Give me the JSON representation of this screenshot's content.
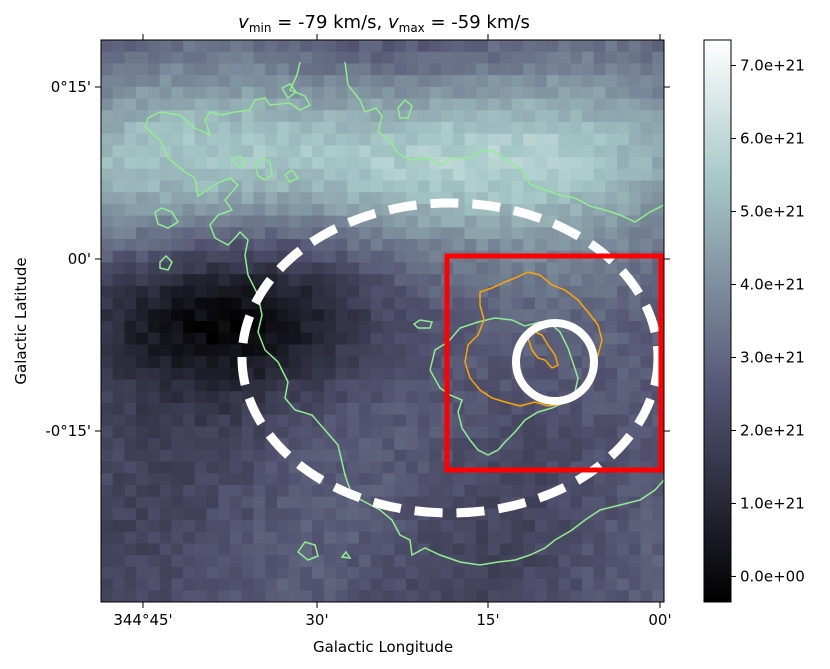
{
  "chart_data": {
    "type": "heatmap",
    "title_parts": {
      "vmin_symbol": "v",
      "vmin_sub": "min",
      "vmin_value": " = -79 km/s, ",
      "vmax_symbol": "v",
      "vmax_sub": "max",
      "vmax_value": " = -59 km/s"
    },
    "xlabel": "Galactic Longitude",
    "ylabel": "Galactic Latitude",
    "x_ticks": [
      {
        "label": "344°45'",
        "l_deg": 344.75
      },
      {
        "label": "30'",
        "l_deg": 344.5
      },
      {
        "label": "15'",
        "l_deg": 344.25
      },
      {
        "label": "00'",
        "l_deg": 344.0
      }
    ],
    "y_ticks": [
      {
        "label": "0°15'",
        "b_deg": 0.25
      },
      {
        "label": "00'",
        "b_deg": 0.0
      },
      {
        "label": "-0°15'",
        "b_deg": -0.25
      }
    ],
    "xlim_deg": [
      344.8,
      343.995
    ],
    "ylim_deg": [
      -0.5,
      0.31
    ],
    "colorbar": {
      "vmin": -3.5e+20,
      "vmax": 7.35e+21,
      "ticks": [
        {
          "value": 0,
          "label": "0.0e+00"
        },
        {
          "value": 1e+21,
          "label": "1.0e+21"
        },
        {
          "value": 2e+21,
          "label": "2.0e+21"
        },
        {
          "value": 3e+21,
          "label": "3.0e+21"
        },
        {
          "value": 4e+21,
          "label": "4.0e+21"
        },
        {
          "value": 5e+21,
          "label": "5.0e+21"
        },
        {
          "value": 6e+21,
          "label": "6.0e+21"
        },
        {
          "value": 7e+21,
          "label": "7.0e+21"
        }
      ],
      "colormap": "bone"
    },
    "overlays": {
      "dashed_ellipse": {
        "center_l": 344.18,
        "center_b": -0.1,
        "semi_l": 0.3,
        "semi_b": 0.22,
        "color": "#ffffff"
      },
      "circle": {
        "center_l": 344.14,
        "center_b": -0.14,
        "radius_deg": 0.055,
        "color": "#ffffff"
      },
      "box": {
        "l_min": 343.997,
        "l_max": 344.3,
        "b_min": -0.3,
        "b_max": 0.0,
        "color": "#ff0000"
      },
      "contour_green_color": "#90ee90",
      "contour_orange_color": "#ffa500"
    },
    "intensity_features": {
      "bright_band": "upper region, peak near l=344.5, b=0.05",
      "dark_region": "left-center near l=344.7, b=-0.1"
    }
  }
}
